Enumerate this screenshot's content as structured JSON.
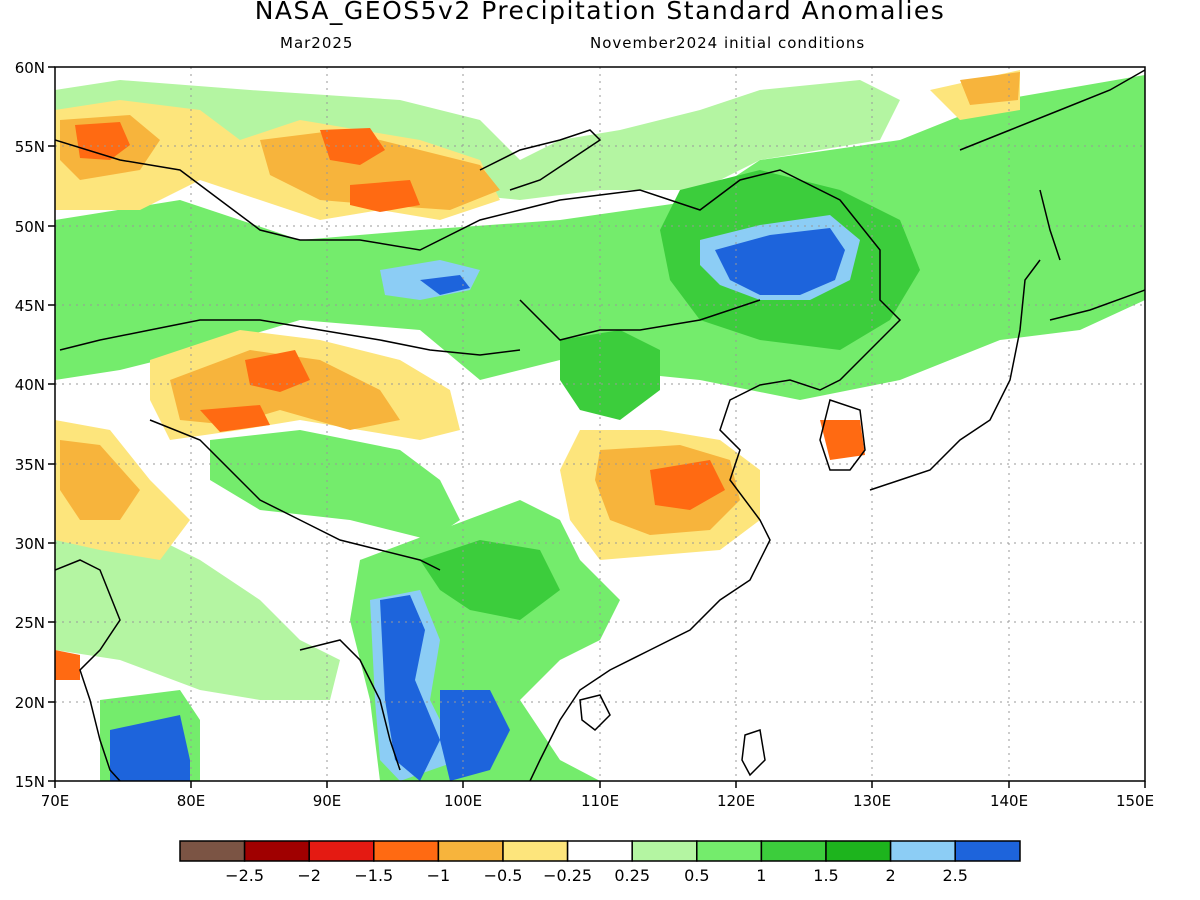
{
  "title": "NASA_GEOS5v2 Precipitation Standard Anomalies",
  "month": "Mar2025",
  "init": "November2024 initial conditions",
  "lat_labels": [
    "60N",
    "55N",
    "50N",
    "45N",
    "40N",
    "35N",
    "30N",
    "25N",
    "20N",
    "15N"
  ],
  "lon_labels": [
    "70E",
    "80E",
    "90E",
    "100E",
    "110E",
    "120E",
    "130E",
    "140E",
    "150E"
  ],
  "colorbar": {
    "colors": [
      "#7b5444",
      "#a00000",
      "#e41a12",
      "#ff6a12",
      "#f7b43c",
      "#fde57c",
      "#ffffff",
      "#b4f5a2",
      "#74ec6c",
      "#3ccd3c",
      "#1db41d",
      "#8ccdf5",
      "#1d64dc"
    ],
    "labels": [
      "−2.5",
      "−2",
      "−1.5",
      "−1",
      "−0.5",
      "−0.25",
      "0.25",
      "0.5",
      "1",
      "1.5",
      "2",
      "2.5"
    ]
  }
}
